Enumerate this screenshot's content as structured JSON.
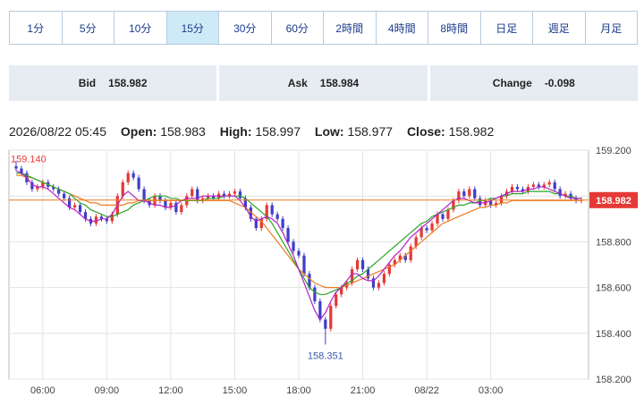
{
  "tabs": [
    {
      "label": "1分"
    },
    {
      "label": "5分"
    },
    {
      "label": "10分"
    },
    {
      "label": "15分"
    },
    {
      "label": "30分"
    },
    {
      "label": "60分"
    },
    {
      "label": "2時間"
    },
    {
      "label": "4時間"
    },
    {
      "label": "8時間"
    },
    {
      "label": "日足"
    },
    {
      "label": "週足"
    },
    {
      "label": "月足"
    }
  ],
  "active_tab_index": 3,
  "quote": {
    "bid_label": "Bid",
    "bid_value": "158.982",
    "ask_label": "Ask",
    "ask_value": "158.984",
    "change_label": "Change",
    "change_value": "-0.098"
  },
  "ohlc": {
    "datetime": "2026/08/22 05:45",
    "open_label": "Open:",
    "open_value": "158.983",
    "high_label": "High:",
    "high_value": "158.997",
    "low_label": "Low:",
    "low_value": "158.977",
    "close_label": "Close:",
    "close_value": "158.982"
  },
  "colors": {
    "up": "#e53935",
    "down": "#3f3fc8",
    "ma_short": "#b31fc4",
    "ma_mid": "#2aa52a",
    "ma_long": "#ee7a1e",
    "grid": "#e3e3e3",
    "accent": "#cfeaf7",
    "last_price_line": "#ee7a1e",
    "last_price_label": "#e53935"
  },
  "chart_data": {
    "type": "candlestick",
    "ylim": [
      158.2,
      159.2
    ],
    "y_ticks": [
      "158.200",
      "158.400",
      "158.600",
      "158.800",
      "159.000",
      "159.200"
    ],
    "x_ticks": [
      "06:00",
      "09:00",
      "12:00",
      "15:00",
      "18:00",
      "21:00",
      "08/22",
      "03:00"
    ],
    "x_tick_hours": [
      6,
      9,
      12,
      15,
      18,
      21,
      24,
      27
    ],
    "x_start_hour": 4.75,
    "interval_hours": 0.25,
    "last_price_label": "158.982",
    "last_price": 158.982,
    "max_label": "159.140",
    "max_value": 159.14,
    "min_label": "158.351",
    "min_value": 158.351,
    "closes": [
      159.12,
      159.1,
      159.06,
      159.03,
      159.04,
      159.06,
      159.04,
      159.03,
      159.01,
      158.99,
      158.95,
      158.96,
      158.93,
      158.9,
      158.88,
      158.91,
      158.9,
      158.89,
      158.92,
      159.0,
      159.06,
      159.1,
      159.08,
      159.03,
      158.98,
      158.96,
      159.0,
      158.98,
      158.95,
      158.97,
      158.93,
      158.96,
      159.0,
      159.03,
      158.98,
      158.99,
      159.0,
      158.99,
      159.01,
      159.0,
      159.01,
      159.02,
      158.99,
      158.95,
      158.9,
      158.86,
      158.9,
      158.96,
      158.92,
      158.9,
      158.86,
      158.8,
      158.76,
      158.74,
      158.66,
      158.6,
      158.54,
      158.46,
      158.42,
      158.52,
      158.57,
      158.6,
      158.62,
      158.68,
      158.72,
      158.68,
      158.64,
      158.6,
      158.62,
      158.66,
      158.7,
      158.72,
      158.74,
      158.72,
      158.78,
      158.82,
      158.86,
      158.85,
      158.88,
      158.92,
      158.9,
      158.94,
      158.98,
      159.02,
      159.0,
      159.03,
      158.99,
      158.96,
      158.98,
      158.96,
      158.97,
      159.0,
      159.02,
      159.04,
      159.03,
      159.02,
      159.04,
      159.05,
      159.04,
      159.05,
      159.06,
      159.03,
      159.0,
      159.01,
      158.99,
      158.98,
      158.982
    ],
    "ma_short": [
      159.11,
      159.1,
      159.08,
      159.05,
      159.04,
      159.04,
      159.03,
      159.01,
      158.99,
      158.97,
      158.95,
      158.94,
      158.92,
      158.9,
      158.89,
      158.89,
      158.9,
      158.9,
      158.92,
      158.96,
      159.0,
      159.02,
      159.0,
      158.98,
      158.98,
      158.97,
      158.96,
      158.96,
      158.95,
      158.95,
      158.96,
      158.98,
      158.99,
      158.99,
      158.99,
      159.0,
      159.0,
      159.0,
      159.0,
      159.0,
      159.0,
      159.0,
      158.98,
      158.95,
      158.91,
      158.89,
      158.9,
      158.91,
      158.9,
      158.88,
      158.84,
      158.79,
      158.74,
      158.68,
      158.62,
      158.56,
      158.5,
      158.46,
      158.49,
      158.54,
      158.58,
      158.6,
      158.63,
      158.66,
      158.66,
      158.64,
      158.63,
      158.63,
      158.65,
      158.68,
      158.71,
      158.74,
      158.76,
      158.79,
      158.82,
      158.84,
      158.86,
      158.88,
      158.9,
      158.92,
      158.94,
      158.96,
      158.98,
      158.99,
      158.99,
      158.98,
      158.97,
      158.97,
      158.97,
      158.98,
      158.99,
      159.0,
      159.01,
      159.02,
      159.02,
      159.02,
      159.03,
      159.03,
      159.04,
      159.04,
      159.03,
      159.02,
      159.01,
      159.0,
      158.99,
      158.99,
      158.99
    ],
    "ma_mid": [
      159.1,
      159.1,
      159.09,
      159.08,
      159.07,
      159.06,
      159.05,
      159.04,
      159.03,
      159.02,
      159.01,
      158.99,
      158.97,
      158.96,
      158.94,
      158.93,
      158.92,
      158.91,
      158.91,
      158.92,
      158.93,
      158.94,
      158.96,
      158.97,
      158.98,
      158.99,
      159.0,
      159.0,
      159.0,
      158.99,
      158.99,
      158.98,
      158.98,
      158.98,
      158.98,
      158.98,
      158.99,
      158.99,
      158.99,
      159.0,
      159.0,
      159.0,
      159.0,
      158.99,
      158.97,
      158.95,
      158.93,
      158.91,
      158.88,
      158.84,
      158.8,
      158.76,
      158.72,
      158.68,
      158.64,
      158.6,
      158.58,
      158.57,
      158.57,
      158.58,
      158.59,
      158.6,
      158.62,
      158.63,
      158.65,
      158.66,
      158.68,
      158.7,
      158.72,
      158.74,
      158.76,
      158.78,
      158.8,
      158.82,
      158.84,
      158.86,
      158.88,
      158.89,
      158.91,
      158.92,
      158.93,
      158.94,
      158.95,
      158.96,
      158.96,
      158.97,
      158.97,
      158.98,
      158.98,
      158.99,
      158.99,
      159.0,
      159.0,
      159.01,
      159.01,
      159.01,
      159.02,
      159.02,
      159.02,
      159.02,
      159.02,
      159.01,
      159.01,
      159.0,
      159.0,
      158.99,
      158.99
    ],
    "ma_long": [
      159.09,
      159.09,
      159.08,
      159.08,
      159.07,
      159.06,
      159.05,
      159.04,
      159.03,
      159.02,
      159.01,
      159.0,
      158.99,
      158.98,
      158.97,
      158.97,
      158.96,
      158.96,
      158.96,
      158.96,
      158.96,
      158.97,
      158.97,
      158.98,
      158.98,
      158.98,
      158.98,
      158.98,
      158.98,
      158.98,
      158.98,
      158.98,
      158.98,
      158.98,
      158.98,
      158.98,
      158.98,
      158.98,
      158.98,
      158.98,
      158.98,
      158.97,
      158.96,
      158.95,
      158.93,
      158.91,
      158.89,
      158.86,
      158.83,
      158.8,
      158.77,
      158.74,
      158.71,
      158.68,
      158.66,
      158.64,
      158.62,
      158.61,
      158.6,
      158.6,
      158.6,
      158.6,
      158.61,
      158.62,
      158.63,
      158.64,
      158.65,
      158.66,
      158.67,
      158.68,
      158.69,
      158.7,
      158.72,
      158.74,
      158.76,
      158.78,
      158.8,
      158.82,
      158.84,
      158.86,
      158.88,
      158.89,
      158.9,
      158.91,
      158.92,
      158.93,
      158.94,
      158.95,
      158.95,
      158.96,
      158.96,
      158.97,
      158.97,
      158.98,
      158.98,
      158.98,
      158.98,
      158.98,
      158.98,
      158.98,
      158.98,
      158.98,
      158.98,
      158.98,
      158.98,
      158.98,
      158.98
    ]
  }
}
